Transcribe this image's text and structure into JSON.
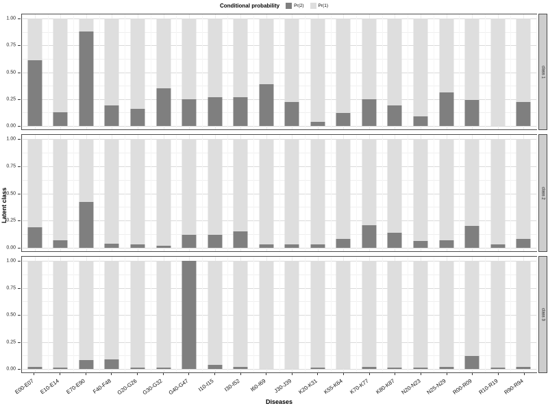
{
  "legend": {
    "title": "Conditional probability",
    "items": [
      {
        "label": "Pr(2)",
        "color": "#7f7f7f"
      },
      {
        "label": "Pr(1)",
        "color": "#dedede"
      }
    ]
  },
  "axes": {
    "x_title": "Diseases",
    "y_title": "Latent class",
    "y_tick_labels": [
      "1.00",
      "0.75",
      "0.50",
      "0.25",
      "0.00"
    ]
  },
  "chart_data": {
    "type": "bar",
    "stacked": true,
    "stack_total": 1.0,
    "ylim": [
      0,
      1
    ],
    "y_ticks": [
      0.0,
      0.25,
      0.5,
      0.75,
      1.0
    ],
    "grid": true,
    "legend_position": "top",
    "xlabel": "Diseases",
    "ylabel": "Latent class",
    "categories": [
      "E00-E07",
      "E10-E14",
      "E70-E90",
      "F40-F48",
      "G20-G26",
      "G30-G32",
      "G40-G47",
      "I10-I15",
      "I30-I52",
      "I60-I69",
      "J30-J39",
      "K20-K31",
      "K55-K64",
      "K70-K77",
      "K80-K87",
      "N20-N23",
      "N25-N29",
      "R00-R09",
      "R10-R19",
      "R90-R94"
    ],
    "facets": [
      {
        "label": "class 1",
        "series": [
          {
            "name": "Pr(2)",
            "color": "#7f7f7f",
            "values": [
              0.61,
              0.13,
              0.88,
              0.19,
              0.16,
              0.35,
              0.25,
              0.27,
              0.27,
              0.39,
              0.22,
              0.04,
              0.12,
              0.25,
              0.19,
              0.09,
              0.31,
              0.24,
              0.0,
              0.22
            ]
          },
          {
            "name": "Pr(1)",
            "color": "#dedede",
            "values": [
              0.39,
              0.87,
              0.12,
              0.81,
              0.84,
              0.65,
              0.75,
              0.73,
              0.73,
              0.61,
              0.78,
              0.96,
              0.88,
              0.75,
              0.81,
              0.91,
              0.69,
              0.76,
              1.0,
              0.78
            ]
          }
        ]
      },
      {
        "label": "class 2",
        "series": [
          {
            "name": "Pr(2)",
            "color": "#7f7f7f",
            "values": [
              0.19,
              0.07,
              0.42,
              0.04,
              0.03,
              0.02,
              0.12,
              0.12,
              0.15,
              0.03,
              0.03,
              0.03,
              0.08,
              0.21,
              0.14,
              0.06,
              0.07,
              0.2,
              0.03,
              0.08
            ]
          },
          {
            "name": "Pr(1)",
            "color": "#dedede",
            "values": [
              0.81,
              0.93,
              0.58,
              0.96,
              0.97,
              0.98,
              0.88,
              0.88,
              0.85,
              0.97,
              0.97,
              0.97,
              0.92,
              0.79,
              0.86,
              0.94,
              0.93,
              0.8,
              0.97,
              0.92
            ]
          }
        ]
      },
      {
        "label": "class 3",
        "series": [
          {
            "name": "Pr(2)",
            "color": "#7f7f7f",
            "values": [
              0.02,
              0.01,
              0.08,
              0.09,
              0.01,
              0.01,
              1.0,
              0.04,
              0.02,
              0.0,
              0.0,
              0.01,
              0.0,
              0.02,
              0.01,
              0.01,
              0.02,
              0.12,
              0.01,
              0.02
            ]
          },
          {
            "name": "Pr(1)",
            "color": "#dedede",
            "values": [
              0.98,
              0.99,
              0.92,
              0.91,
              0.99,
              0.99,
              0.0,
              0.96,
              0.98,
              1.0,
              1.0,
              0.99,
              1.0,
              0.98,
              0.99,
              0.99,
              0.98,
              0.88,
              0.99,
              0.98
            ]
          }
        ]
      }
    ]
  },
  "layout_colors": {
    "panel_border": "#4a4a4a",
    "strip_background": "#cdcdcd",
    "grid_major": "#d9d9d9",
    "grid_minor": "#efefef"
  }
}
